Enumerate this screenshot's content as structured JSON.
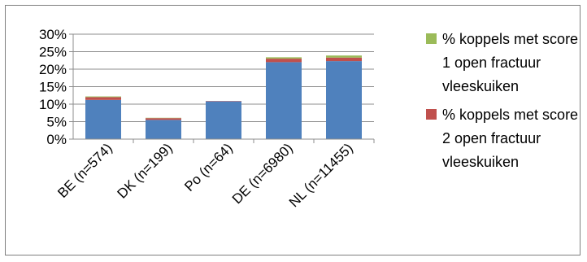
{
  "chart_data": {
    "type": "bar",
    "stacked": true,
    "categories": [
      "BE (n=574)",
      "DK (n=199)",
      "Po (n=64)",
      "DE (n=6980)",
      "NL (n=11455)"
    ],
    "series": [
      {
        "name": "",
        "color": "#4f81bd",
        "values": [
          11.2,
          5.5,
          10.8,
          22.0,
          22.3
        ]
      },
      {
        "name": "% koppels met score 2 open fractuur vleeskuiken",
        "color": "#c0504d",
        "values": [
          0.8,
          0.5,
          0.1,
          1.0,
          1.0
        ]
      },
      {
        "name": "% koppels met score 1 open fractuur vleeskuiken",
        "color": "#9bbb59",
        "values": [
          0.2,
          0.1,
          0.0,
          0.4,
          0.6
        ]
      }
    ],
    "yticks": [
      "0%",
      "5%",
      "10%",
      "15%",
      "20%",
      "25%",
      "30%"
    ],
    "ylim": [
      0,
      30
    ],
    "grid": true,
    "legend_position": "right",
    "legend_order": [
      2,
      1
    ]
  }
}
